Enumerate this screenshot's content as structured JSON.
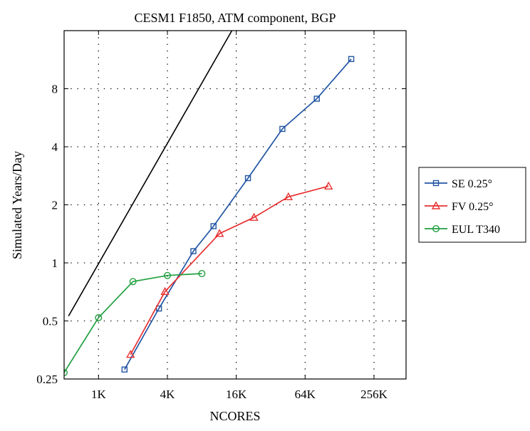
{
  "chart_data": {
    "type": "line",
    "title": "CESM1 F1850, ATM component, BGP",
    "xlabel": "NCORES",
    "ylabel": "Simulated Years/Day",
    "x_scale": "log2",
    "y_scale": "log2",
    "xlim": [
      512,
      500000
    ],
    "ylim": [
      0.25,
      16
    ],
    "x_ticks": [
      1024,
      4096,
      16384,
      65536,
      262144
    ],
    "x_tick_labels": [
      "1K",
      "4K",
      "16K",
      "64K",
      "256K"
    ],
    "y_ticks": [
      0.25,
      0.5,
      1,
      2,
      4,
      8
    ],
    "y_tick_labels": [
      "0.25",
      "0.5",
      "1",
      "2",
      "4",
      "8"
    ],
    "grid": true,
    "legend_position": "outside-right",
    "reference_line": {
      "x": [
        560,
        15000
      ],
      "y": [
        0.53,
        16
      ],
      "color": "#000000"
    },
    "series": [
      {
        "name": "SE 0.25°",
        "marker": "square",
        "color": "#2255a4",
        "x": [
          1728,
          3456,
          6912,
          10368,
          20736,
          41472,
          82944,
          165888
        ],
        "y": [
          0.28,
          0.58,
          1.15,
          1.55,
          2.75,
          4.95,
          7.1,
          11.4
        ]
      },
      {
        "name": "FV 0.25°",
        "marker": "triangle",
        "color": "#e83030",
        "x": [
          1950,
          3900,
          11700,
          23400,
          46800,
          105000
        ],
        "y": [
          0.335,
          0.71,
          1.42,
          1.72,
          2.2,
          2.5
        ]
      },
      {
        "name": "EUL T340",
        "marker": "circle",
        "color": "#22a040",
        "x": [
          512,
          1024,
          2048,
          4096,
          8192
        ],
        "y": [
          0.27,
          0.52,
          0.8,
          0.86,
          0.88
        ]
      }
    ]
  }
}
